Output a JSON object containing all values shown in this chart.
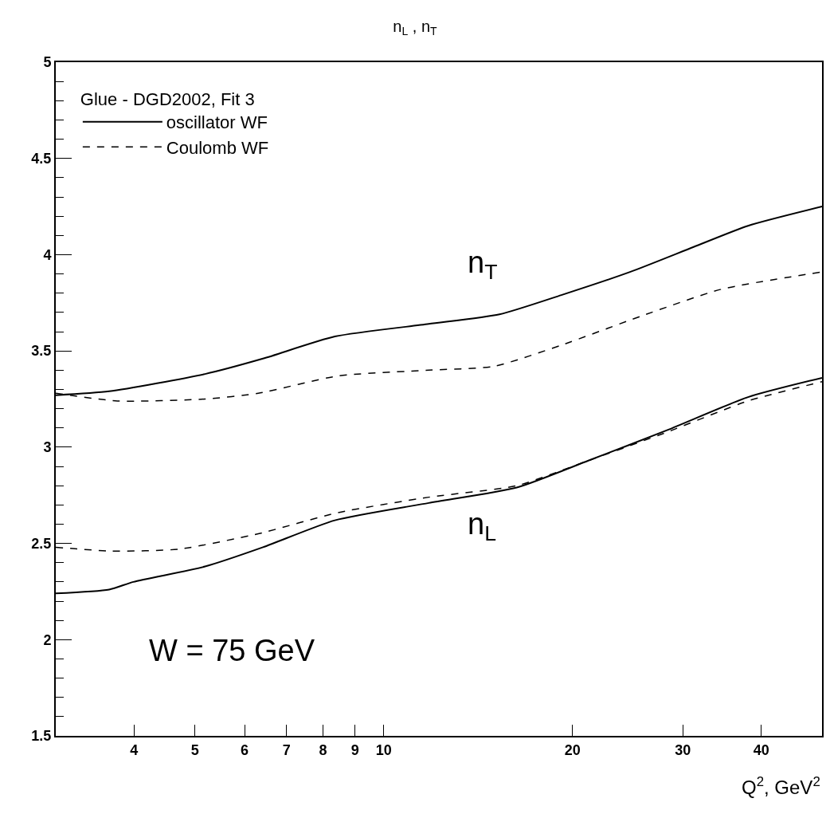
{
  "chart_data": {
    "type": "line",
    "title": "n$_{L}$ , n$_{T}$",
    "xlabel": "Q$^{2}$, GeV$^{2}$",
    "legend_title": "Glue - DGD2002, Fit 3",
    "legend": "top left",
    "log": "x",
    "marker": "none",
    "xlim": [
      3,
      50
    ],
    "xticks": [
      4,
      5,
      6,
      7,
      8,
      9,
      10,
      20,
      30,
      40
    ],
    "ylim": [
      1.5,
      5
    ],
    "yticks": [
      1.5,
      2,
      2.5,
      3,
      3.5,
      4,
      4.5,
      5
    ],
    "series": [
      {
        "name": "oscillator WF",
        "color": "#000000",
        "line_style": "solid",
        "x": [
          3.0,
          3.65,
          5.19,
          6.42,
          8.36,
          11.8,
          15.3,
          19.2,
          24.7,
          31.2,
          38.1,
          50
        ],
        "values": [
          3.27,
          3.29,
          3.38,
          3.46,
          3.575,
          3.64,
          3.69,
          3.79,
          3.91,
          4.04,
          4.15,
          4.25
        ]
      },
      {
        "name": "Coulomb WF",
        "color": "#000000",
        "line_style": "dashed",
        "x": [
          3.0,
          3.76,
          5.19,
          6.31,
          8.46,
          11.8,
          15.0,
          19.2,
          25.7,
          34.5,
          50
        ],
        "values": [
          3.28,
          3.24,
          3.25,
          3.28,
          3.37,
          3.4,
          3.42,
          3.53,
          3.68,
          3.82,
          3.91
        ]
      },
      {
        "color": "#000000",
        "line_style": "solid",
        "x": [
          3.0,
          3.65,
          3.99,
          5.19,
          6.42,
          8.36,
          11.8,
          16.3,
          21.2,
          28.4,
          38.1,
          50
        ],
        "values": [
          2.24,
          2.26,
          2.3,
          2.38,
          2.48,
          2.62,
          2.71,
          2.79,
          2.93,
          3.09,
          3.26,
          3.36
        ]
      },
      {
        "color": "#000000",
        "line_style": "dashed",
        "x": [
          3.0,
          3.68,
          4.71,
          6.31,
          8.46,
          11.8,
          16.3,
          21.2,
          28.4,
          38.1,
          50
        ],
        "values": [
          2.48,
          2.46,
          2.47,
          2.55,
          2.66,
          2.74,
          2.8,
          2.93,
          3.08,
          3.24,
          3.34
        ]
      }
    ],
    "annotations": [
      "n$_{T}$",
      "n$_{L}$",
      "W = 75 GeV"
    ]
  }
}
